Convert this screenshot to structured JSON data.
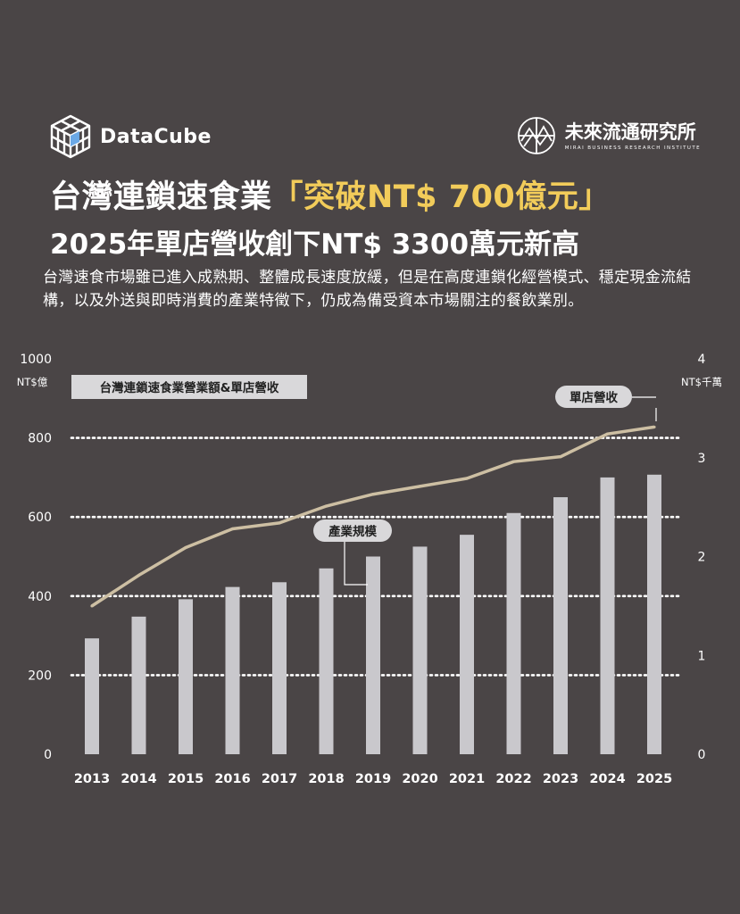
{
  "brand_left": "DataCube",
  "brand_right": {
    "name": "未來流通研究所",
    "sub": "MIRAI BUSINESS RESEARCH INSTITUTE"
  },
  "headline": {
    "line1_prefix": "台灣連鎖速食業",
    "line1_highlight": "「突破NT$ 700億元」",
    "line2": "2025年單店營收創下NT$ 3300萬元新高"
  },
  "description": "台灣速食市場雖已進入成熟期、整體成長速度放緩，但是在高度連鎖化經營模式、穩定現金流結構，以及外送與即時消費的產業特徵下，仍成為備受資本市場關注的餐飲業別。",
  "colors": {
    "background": "#4a4546",
    "bar": "#c9c8cc",
    "line": "#cdbfa3",
    "highlight": "#f2cc5a",
    "label_fill": "#d9d8da"
  },
  "icons": {
    "left_logo": "cube-icon",
    "right_logo": "globe-icon"
  },
  "chart_data": {
    "type": "bar",
    "title": "台灣連鎖速食業營業額&單店營收",
    "categories": [
      "2013",
      "2014",
      "2015",
      "2016",
      "2017",
      "2018",
      "2019",
      "2020",
      "2021",
      "2022",
      "2023",
      "2024",
      "2025"
    ],
    "series": [
      {
        "name": "產業規模",
        "type": "bar",
        "axis": "left",
        "values": [
          293,
          348,
          392,
          423,
          435,
          470,
          500,
          525,
          555,
          610,
          650,
          700,
          707
        ]
      },
      {
        "name": "單店營收",
        "type": "line",
        "axis": "right",
        "values": [
          1.5,
          1.81,
          2.09,
          2.28,
          2.34,
          2.51,
          2.63,
          2.71,
          2.79,
          2.96,
          3.01,
          3.24,
          3.31
        ]
      }
    ],
    "y_left": {
      "unit": "NT$億",
      "ylim": [
        0,
        1000
      ],
      "ticks": [
        "0",
        "200",
        "400",
        "600",
        "800",
        "1000"
      ]
    },
    "y_right": {
      "unit": "NT$千萬",
      "ylim": [
        0,
        4
      ],
      "ticks": [
        "0",
        "1",
        "2",
        "3",
        "4"
      ]
    },
    "grid": true
  }
}
